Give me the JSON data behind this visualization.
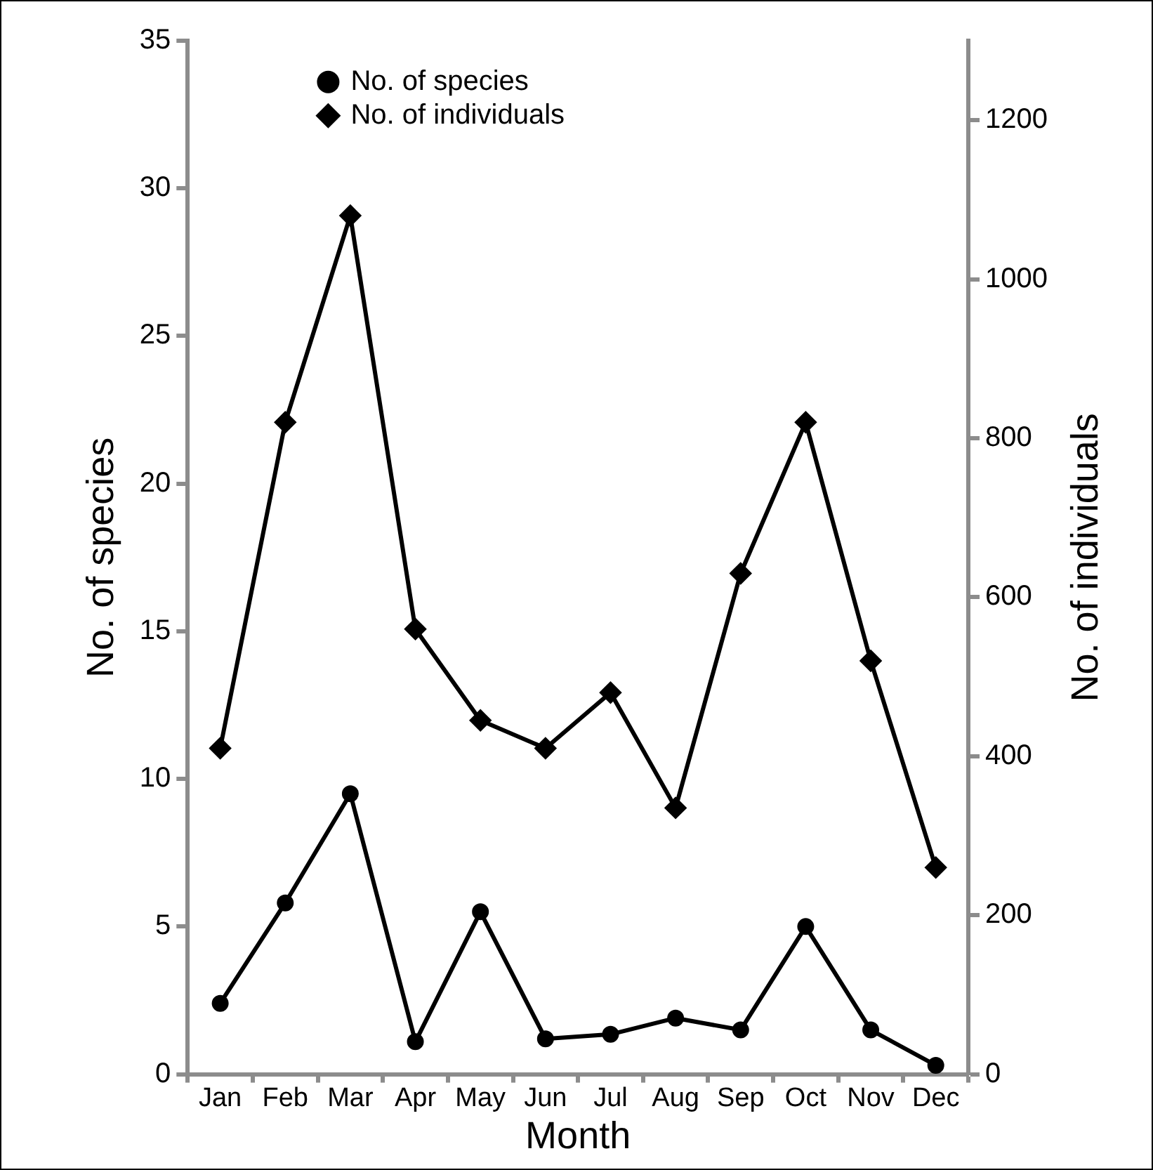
{
  "chart_data": {
    "type": "line",
    "xlabel": "Month",
    "ylabel": "No. of species",
    "y2label": "No. of individuals",
    "categories": [
      "Jan",
      "Feb",
      "Mar",
      "Apr",
      "May",
      "Jun",
      "Jul",
      "Aug",
      "Sep",
      "Oct",
      "Nov",
      "Dec"
    ],
    "series": [
      {
        "name": "No. of species",
        "color": "#000000",
        "marker": "circle",
        "values": [
          2.4,
          5.8,
          9.5,
          1.1,
          5.5,
          1.2,
          1.35,
          1.9,
          1.5,
          5.0,
          1.5,
          0.3
        ]
      },
      {
        "name": "No. of individuals",
        "color": "#000000",
        "marker": "diamond",
        "axis": "y2",
        "values": [
          410,
          820,
          1080,
          560,
          445,
          410,
          480,
          335,
          630,
          820,
          520,
          260
        ]
      }
    ],
    "ylim": [
      0,
      35
    ],
    "yticks": [
      0,
      5,
      10,
      15,
      20,
      25,
      30,
      35
    ],
    "y2lim": [
      0,
      1300
    ],
    "y2ticks": [
      0,
      200,
      400,
      600,
      800,
      1000,
      1200
    ],
    "grid": false,
    "legend": "top",
    "line_style": "solid"
  }
}
